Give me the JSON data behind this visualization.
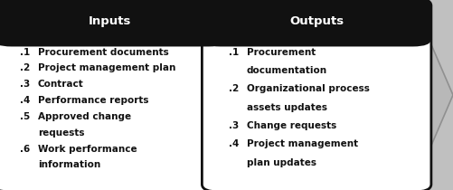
{
  "background_color": "#c0c0c0",
  "arrow_face_color": "#b0b0b0",
  "arrow_edge_color": "#888888",
  "box1_header": "Inputs",
  "box2_header": "Outputs",
  "box1_items_line1": [
    ".1",
    ".2",
    ".3",
    ".4",
    ".5",
    "",
    ".6",
    ""
  ],
  "box1_items_line2": [
    "Procurement documents",
    "Project management plan",
    "Contract",
    "Performance reports",
    "Approved change",
    "requests",
    "Work performance",
    "information"
  ],
  "box2_items_line1": [
    ".1",
    "",
    ".2",
    "",
    ".3",
    ".4",
    ""
  ],
  "box2_items_line2": [
    "Procurement",
    "documentation",
    "Organizational process",
    "assets updates",
    "Change requests",
    "Project management",
    "plan updates"
  ],
  "header_bg": "#111111",
  "header_fg": "#ffffff",
  "box_bg": "#ffffff",
  "box_border": "#111111",
  "text_color": "#111111",
  "header_fontsize": 9.5,
  "item_fontsize": 7.5,
  "item_fontsize_bold": false
}
